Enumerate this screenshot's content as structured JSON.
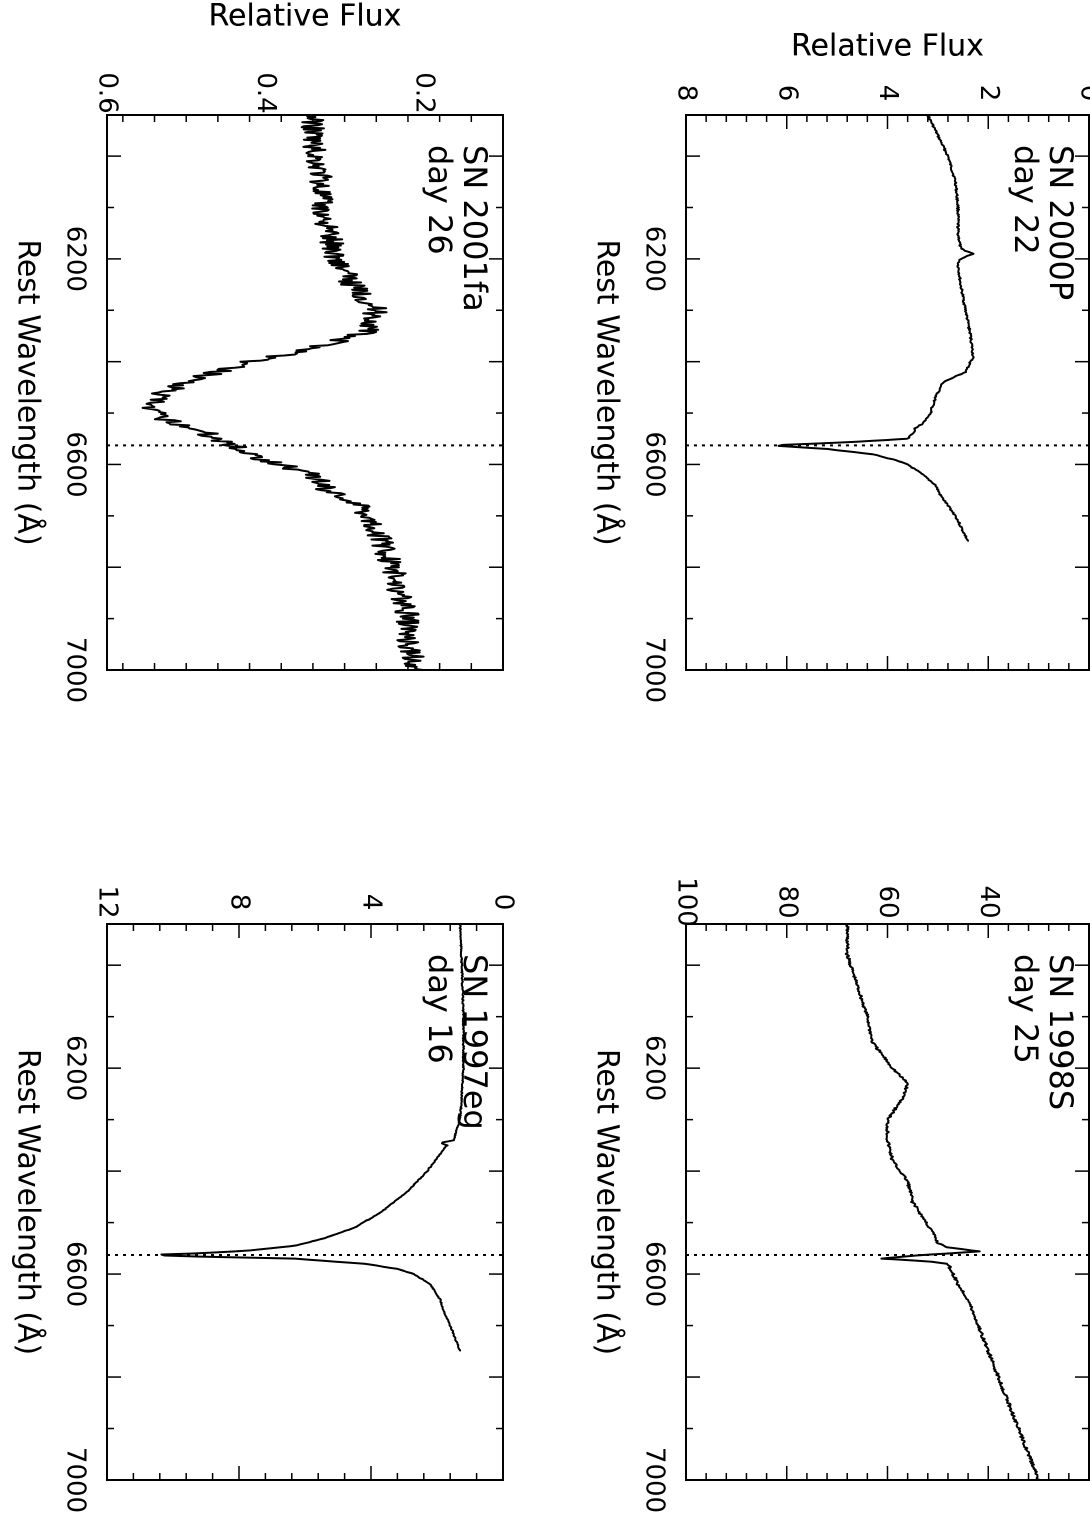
{
  "chart_data": [
    {
      "type": "line",
      "panel": "top-left",
      "label_line1": "SN 2000P",
      "label_line2": "day 22",
      "xlabel": "Rest Wavelength (Å)",
      "ylabel": "Relative Flux",
      "xlim": [
        5920,
        7000
      ],
      "ylim": [
        0,
        8
      ],
      "xticks": [
        6200,
        6600,
        7000
      ],
      "xtick_labels": [
        "6200",
        "6600",
        "7000"
      ],
      "yticks": [
        0,
        2,
        4,
        6,
        8
      ],
      "ytick_labels": [
        "0",
        "2",
        "4",
        "6",
        "8"
      ],
      "marker_line": 6563,
      "noise": 0.02,
      "series": [
        {
          "x": [
            5920,
            5960,
            6000,
            6050,
            6100,
            6150,
            6180,
            6190,
            6200,
            6210,
            6250,
            6300,
            6350,
            6390,
            6420,
            6440,
            6470,
            6500,
            6520,
            6530,
            6540,
            6550,
            6556,
            6563,
            6570,
            6580,
            6590,
            6600,
            6620,
            6640,
            6660,
            6680,
            6700,
            6720,
            6740,
            6750
          ],
          "y": [
            3.2,
            3.0,
            2.8,
            2.65,
            2.6,
            2.6,
            2.55,
            2.3,
            2.55,
            2.6,
            2.55,
            2.45,
            2.35,
            2.3,
            2.45,
            2.9,
            3.05,
            3.15,
            3.3,
            3.45,
            3.5,
            3.6,
            4.6,
            6.3,
            5.2,
            4.3,
            3.9,
            3.6,
            3.3,
            3.05,
            2.95,
            2.8,
            2.65,
            2.55,
            2.45,
            2.4
          ]
        }
      ]
    },
    {
      "type": "line",
      "panel": "top-right",
      "label_line1": "SN 1998S",
      "label_line2": "day 25",
      "xlabel": "Rest Wavelength (Å)",
      "ylabel": "Relative Flux",
      "xlim": [
        5920,
        7000
      ],
      "ylim": [
        20,
        100
      ],
      "xticks": [
        6200,
        6600,
        7000
      ],
      "xtick_labels": [
        "6200",
        "6600",
        "7000"
      ],
      "yticks": [
        40,
        60,
        80,
        100
      ],
      "ytick_labels": [
        "40",
        "60",
        "80",
        "100"
      ],
      "marker_line": 6563,
      "noise": 0.3,
      "series": [
        {
          "x": [
            5920,
            5980,
            6040,
            6100,
            6150,
            6200,
            6230,
            6260,
            6300,
            6340,
            6380,
            6420,
            6460,
            6490,
            6520,
            6540,
            6548,
            6556,
            6560,
            6565,
            6570,
            6575,
            6580,
            6600,
            6620,
            6650,
            6700,
            6750,
            6800,
            6850,
            6900,
            6950,
            7000
          ],
          "y": [
            68,
            68,
            66,
            64,
            63,
            59,
            56,
            57,
            60,
            60,
            59,
            56,
            55,
            53,
            51,
            50,
            48,
            42,
            48,
            56,
            61,
            52,
            48,
            47,
            46,
            44,
            42,
            40,
            38,
            36,
            34,
            32,
            30
          ]
        }
      ]
    },
    {
      "type": "line",
      "panel": "bottom-left",
      "label_line1": "SN 2001fa",
      "label_line2": "day 26",
      "xlabel": "Rest Wavelength (Å)",
      "ylabel": "Relative Flux",
      "xlim": [
        5920,
        7000
      ],
      "ylim": [
        0.1,
        0.6
      ],
      "xticks": [
        6200,
        6600,
        7000
      ],
      "xtick_labels": [
        "6200",
        "6600",
        "7000"
      ],
      "yticks": [
        0.2,
        0.4,
        0.6
      ],
      "ytick_labels": [
        "0.2",
        "0.4",
        "0.6"
      ],
      "marker_line": 6563,
      "noise": 0.015,
      "series": [
        {
          "x": [
            5920,
            5980,
            6040,
            6100,
            6150,
            6200,
            6250,
            6300,
            6340,
            6380,
            6400,
            6430,
            6460,
            6490,
            6510,
            6530,
            6550,
            6563,
            6580,
            6600,
            6620,
            6650,
            6680,
            6700,
            6730,
            6760,
            6800,
            6850,
            6900,
            6950,
            7000
          ],
          "y": [
            0.34,
            0.34,
            0.33,
            0.33,
            0.32,
            0.31,
            0.29,
            0.26,
            0.27,
            0.35,
            0.42,
            0.48,
            0.53,
            0.55,
            0.53,
            0.49,
            0.46,
            0.44,
            0.42,
            0.38,
            0.34,
            0.32,
            0.28,
            0.27,
            0.26,
            0.25,
            0.24,
            0.23,
            0.22,
            0.22,
            0.21
          ]
        }
      ]
    },
    {
      "type": "line",
      "panel": "bottom-right",
      "label_line1": "SN 1997eg",
      "label_line2": "day 16",
      "xlabel": "Rest Wavelength (Å)",
      "ylabel": "Relative Flux",
      "xlim": [
        5920,
        7000
      ],
      "ylim": [
        0,
        12
      ],
      "xticks": [
        6200,
        6600,
        7000
      ],
      "xtick_labels": [
        "6200",
        "6600",
        "7000"
      ],
      "yticks": [
        0,
        4,
        8,
        12
      ],
      "ytick_labels": [
        "0",
        "4",
        "8",
        "12"
      ],
      "marker_line": 6563,
      "noise": 0.02,
      "series": [
        {
          "x": [
            5920,
            6000,
            6100,
            6200,
            6300,
            6340,
            6345,
            6350,
            6400,
            6440,
            6480,
            6510,
            6530,
            6545,
            6555,
            6560,
            6563,
            6566,
            6570,
            6580,
            6590,
            6600,
            6620,
            6650,
            6670,
            6700,
            6750
          ],
          "y": [
            1.3,
            1.25,
            1.2,
            1.2,
            1.3,
            1.5,
            1.9,
            1.7,
            2.3,
            2.9,
            3.7,
            4.5,
            5.4,
            6.3,
            7.8,
            9.4,
            10.8,
            9.2,
            6.3,
            4.2,
            3.2,
            2.7,
            2.2,
            1.9,
            1.8,
            1.6,
            1.3
          ]
        }
      ]
    }
  ]
}
